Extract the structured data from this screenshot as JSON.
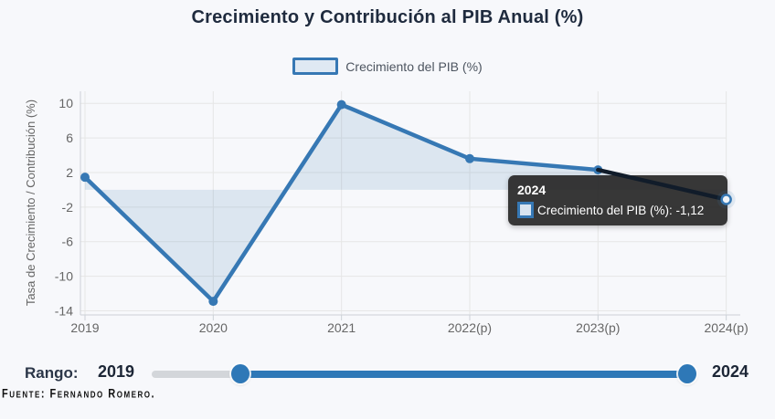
{
  "title": "Crecimiento y Contribución al PIB Anual (%)",
  "legend": {
    "items": [
      {
        "label": "Crecimiento del PIB (%)"
      }
    ]
  },
  "tooltip": {
    "year": "2024",
    "text": "Crecimiento del PIB (%): -1,12"
  },
  "range_slider": {
    "label": "Rango:",
    "min_label": "2019",
    "max_label": "2024"
  },
  "source": "Fuente: Fernando Romero.",
  "colors": {
    "line": "#3678b4",
    "area_fill": "rgba(54,120,180,0.14)",
    "projection_segment": "#111c2a",
    "grid": "#e6e6e6",
    "axis": "#ccd1d7",
    "tick_text": "#666666",
    "title_text": "#1f2b3e",
    "tooltip_bg": "#262626",
    "slider_track": "#d3d6da",
    "slider_active": "#2e78b7"
  },
  "chart_data": {
    "type": "area",
    "title": "Crecimiento y Contribución al PIB Anual (%)",
    "ylabel": "Tasa de Crecimiento / Contribución (%)",
    "xlabel": "",
    "categories": [
      "2019",
      "2020",
      "2021",
      "2022(p)",
      "2023(p)",
      "2024(p)"
    ],
    "series": [
      {
        "name": "Crecimiento del PIB (%)",
        "values": [
          1.45,
          -12.9,
          9.85,
          3.6,
          2.3,
          -1.12
        ]
      }
    ],
    "yticks": [
      10,
      6,
      2,
      -2,
      -6,
      -10,
      -14
    ],
    "ylim": [
      -14.5,
      11.4
    ],
    "grid": true,
    "legend_position": "top",
    "baseline": 0,
    "hovered_point": {
      "category": "2024(p)",
      "label": "2024",
      "value": -1.12,
      "value_text": "-1,12"
    }
  }
}
